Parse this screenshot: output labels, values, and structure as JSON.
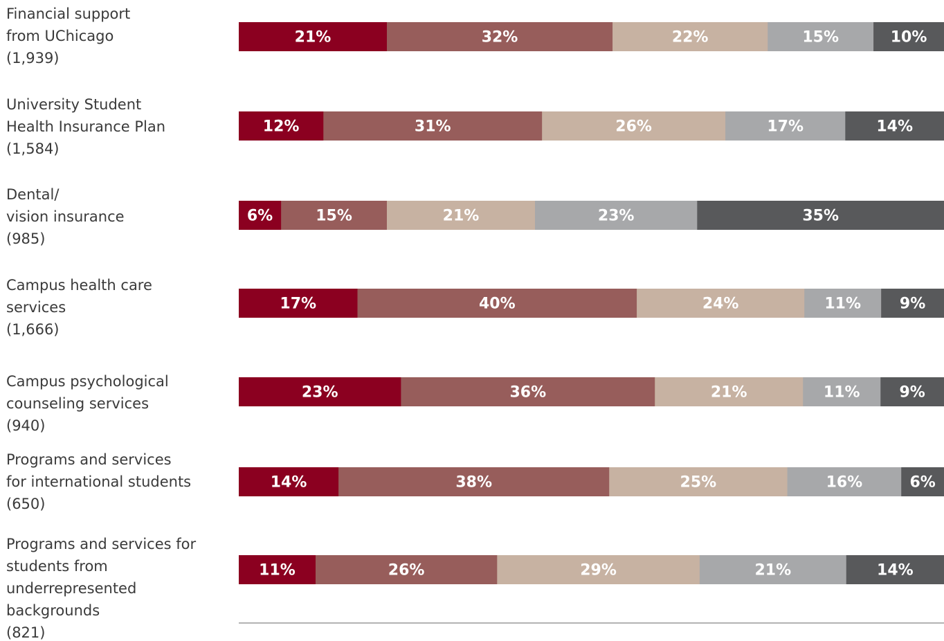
{
  "chart_data": {
    "type": "bar",
    "orientation": "horizontal",
    "stacked": true,
    "normalized_percent": true,
    "categories": [
      [
        "Financial support",
        "from UChicago",
        "(1,939)"
      ],
      [
        "University Student",
        "Health Insurance Plan",
        "(1,584)"
      ],
      [
        "Dental/",
        "vision insurance",
        "(985)"
      ],
      [
        "Campus health care",
        "services",
        "(1,666)"
      ],
      [
        "Campus psychological",
        "counseling services",
        "(940)"
      ],
      [
        "Programs and services",
        "for international students",
        "(650)"
      ],
      [
        "Programs and services for",
        "students from",
        "underrepresented",
        "backgrounds",
        "(821)"
      ]
    ],
    "series": [
      {
        "color": "#8b0020",
        "values": [
          21,
          12,
          6,
          17,
          23,
          14,
          11
        ],
        "labels": [
          "21%",
          "12%",
          "6%",
          "17%",
          "23%",
          "14%",
          "11%"
        ]
      },
      {
        "color": "#975d5b",
        "values": [
          32,
          31,
          15,
          40,
          36,
          38,
          26
        ],
        "labels": [
          "32%",
          "31%",
          "15%",
          "40%",
          "36%",
          "38%",
          "26%"
        ]
      },
      {
        "color": "#c7b2a2",
        "values": [
          22,
          26,
          21,
          24,
          21,
          25,
          29
        ],
        "labels": [
          "22%",
          "26%",
          "21%",
          "24%",
          "21%",
          "25%",
          "29%"
        ]
      },
      {
        "color": "#a7a8aa",
        "values": [
          15,
          17,
          23,
          11,
          11,
          16,
          21
        ],
        "labels": [
          "15%",
          "17%",
          "23%",
          "11%",
          "11%",
          "16%",
          "21%"
        ]
      },
      {
        "color": "#58595b",
        "values": [
          10,
          14,
          35,
          9,
          9,
          6,
          14
        ],
        "labels": [
          "10%",
          "14%",
          "35%",
          "9%",
          "9%",
          "6%",
          "14%"
        ]
      }
    ],
    "xlim": [
      0,
      100
    ],
    "grid": false,
    "legend": "none"
  }
}
